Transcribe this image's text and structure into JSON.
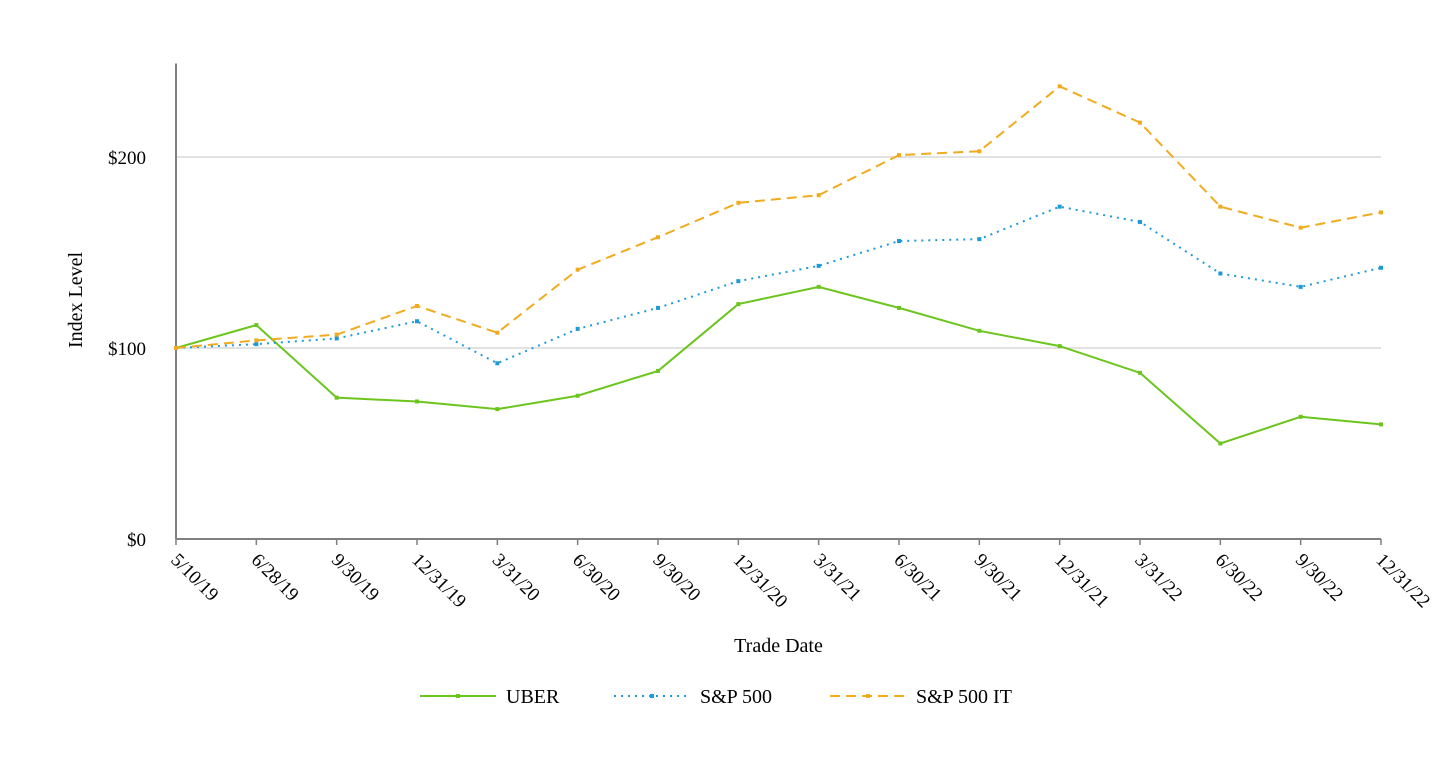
{
  "chart_data": {
    "type": "line",
    "xlabel": "Trade Date",
    "ylabel": "Index Level",
    "ylim": [
      0,
      250
    ],
    "y_ticks": [
      0,
      100,
      200
    ],
    "y_tick_labels": [
      "$0",
      "$100",
      "$200"
    ],
    "grid": true,
    "legend_position": "bottom",
    "categories": [
      "5/10/19",
      "6/28/19",
      "9/30/19",
      "12/31/19",
      "3/31/20",
      "6/30/20",
      "9/30/20",
      "12/31/20",
      "3/31/21",
      "6/30/21",
      "9/30/21",
      "12/31/21",
      "3/31/22",
      "6/30/22",
      "9/30/22",
      "12/31/22"
    ],
    "series": [
      {
        "name": "UBER",
        "color": "#6cc51d",
        "style": "solid",
        "values": [
          100,
          112,
          74,
          72,
          68,
          75,
          88,
          123,
          132,
          121,
          109,
          101,
          87,
          50,
          64,
          60
        ]
      },
      {
        "name": "S&P 500",
        "color": "#1e9ad6",
        "style": "dotted",
        "values": [
          100,
          102,
          105,
          114,
          92,
          110,
          121,
          135,
          143,
          156,
          157,
          174,
          166,
          139,
          132,
          142
        ]
      },
      {
        "name": "S&P 500 IT",
        "color": "#f0ab1f",
        "style": "dashed",
        "values": [
          100,
          104,
          107,
          122,
          108,
          141,
          158,
          176,
          180,
          201,
          203,
          237,
          218,
          174,
          163,
          171
        ]
      }
    ]
  }
}
